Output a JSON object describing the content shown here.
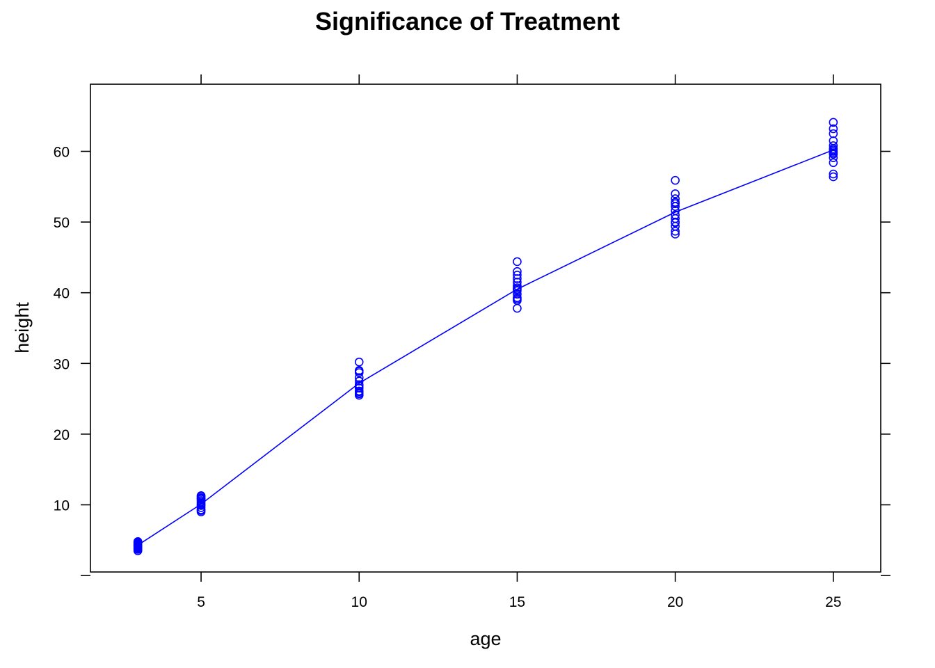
{
  "chart_data": {
    "type": "scatter",
    "title": "Significance of Treatment",
    "xlabel": "age",
    "ylabel": "height",
    "xlim": [
      1.5,
      26.5
    ],
    "ylim": [
      0.5,
      69.5
    ],
    "x_ticks": [
      5,
      10,
      15,
      20,
      25
    ],
    "y_ticks": [
      10,
      20,
      30,
      40,
      50,
      60
    ],
    "grid": false,
    "color": "#0000ff",
    "points": {
      "x": [
        3,
        3,
        3,
        3,
        3,
        3,
        3,
        3,
        3,
        3,
        3,
        3,
        3,
        3,
        5,
        5,
        5,
        5,
        5,
        5,
        5,
        5,
        5,
        5,
        5,
        5,
        5,
        5,
        10,
        10,
        10,
        10,
        10,
        10,
        10,
        10,
        10,
        10,
        10,
        10,
        10,
        10,
        15,
        15,
        15,
        15,
        15,
        15,
        15,
        15,
        15,
        15,
        15,
        15,
        15,
        15,
        20,
        20,
        20,
        20,
        20,
        20,
        20,
        20,
        20,
        20,
        20,
        20,
        20,
        20,
        25,
        25,
        25,
        25,
        25,
        25,
        25,
        25,
        25,
        25,
        25,
        25,
        25,
        25
      ],
      "y": [
        3.5,
        3.7,
        3.9,
        4.0,
        4.1,
        4.2,
        4.3,
        4.4,
        4.5,
        4.6,
        4.7,
        4.8,
        3.8,
        4.25,
        9.0,
        9.3,
        9.6,
        9.9,
        10.2,
        10.4,
        10.6,
        10.8,
        11.0,
        11.2,
        9.2,
        10.0,
        10.9,
        11.3,
        25.5,
        25.8,
        26.1,
        26.5,
        27.0,
        27.5,
        28.0,
        28.7,
        29.0,
        30.2,
        25.7,
        26.0,
        26.8,
        28.9,
        37.8,
        38.9,
        39.3,
        39.8,
        40.3,
        40.7,
        41.0,
        41.5,
        42.0,
        42.5,
        43.0,
        44.4,
        39.1,
        40.5,
        48.3,
        48.7,
        49.4,
        50.0,
        50.5,
        51.0,
        51.6,
        52.2,
        52.8,
        53.3,
        54.0,
        55.9,
        49.9,
        52.6,
        56.4,
        56.8,
        58.4,
        59.1,
        59.6,
        60.0,
        60.4,
        60.8,
        61.5,
        62.5,
        63.2,
        64.1,
        59.8,
        60.2
      ]
    },
    "line": {
      "x": [
        3,
        5,
        10,
        15,
        20,
        25
      ],
      "y": [
        4.3,
        10.1,
        27.2,
        40.5,
        51.4,
        60.2
      ]
    }
  }
}
